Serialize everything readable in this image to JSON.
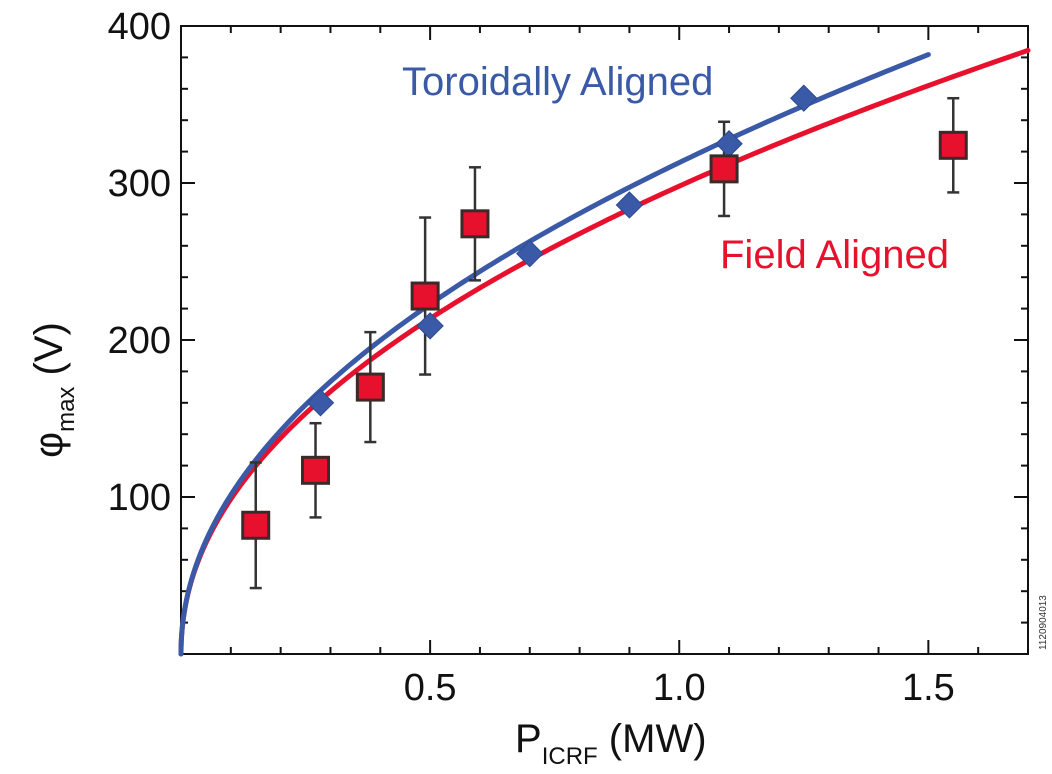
{
  "chart_data": {
    "type": "scatter",
    "title": "",
    "xlim": [
      0,
      1.7
    ],
    "ylim": [
      0,
      400
    ],
    "x_ticks": [
      0.5,
      1.0,
      1.5
    ],
    "x_tick_labels": [
      "0.5",
      "1.0",
      "1.5"
    ],
    "y_ticks": [
      100,
      200,
      300,
      400
    ],
    "y_tick_labels": [
      "100",
      "200",
      "300",
      "400"
    ],
    "xlabel": {
      "main": "P",
      "sub": "ICRF",
      "unit": " (MW)"
    },
    "ylabel": {
      "main": "φ",
      "sub": "max",
      "unit": " (V)"
    },
    "grid": false,
    "series": [
      {
        "name": "Toroidally Aligned",
        "color": "#3a5aa8",
        "marker": "diamond",
        "points": [
          {
            "x": 0.28,
            "y": 160
          },
          {
            "x": 0.5,
            "y": 209
          },
          {
            "x": 0.7,
            "y": 255
          },
          {
            "x": 0.9,
            "y": 286
          },
          {
            "x": 1.1,
            "y": 325
          },
          {
            "x": 1.25,
            "y": 354
          }
        ],
        "fit_curve": {
          "form": "power",
          "coefficient": 313,
          "exponent": 0.49,
          "x_start": 0,
          "x_end": 1.5
        }
      },
      {
        "name": "Field Aligned",
        "color": "#e8112d",
        "marker": "square",
        "points": [
          {
            "x": 0.15,
            "y": 82,
            "err": 40
          },
          {
            "x": 0.27,
            "y": 117,
            "err": 30
          },
          {
            "x": 0.38,
            "y": 170,
            "err": 35
          },
          {
            "x": 0.49,
            "y": 228,
            "err": 50
          },
          {
            "x": 0.59,
            "y": 274,
            "err": 36
          },
          {
            "x": 1.09,
            "y": 309,
            "err": 30
          },
          {
            "x": 1.55,
            "y": 324,
            "err": 30
          }
        ],
        "fit_curve": {
          "form": "power",
          "coefficient": 298,
          "exponent": 0.48,
          "x_start": 0,
          "x_end": 1.7
        }
      }
    ],
    "annotations": [
      {
        "text": "Toroidally Aligned",
        "color": "#3a5aa8"
      },
      {
        "text": "Field Aligned",
        "color": "#e8112d"
      }
    ],
    "side_text": "1120904013"
  }
}
